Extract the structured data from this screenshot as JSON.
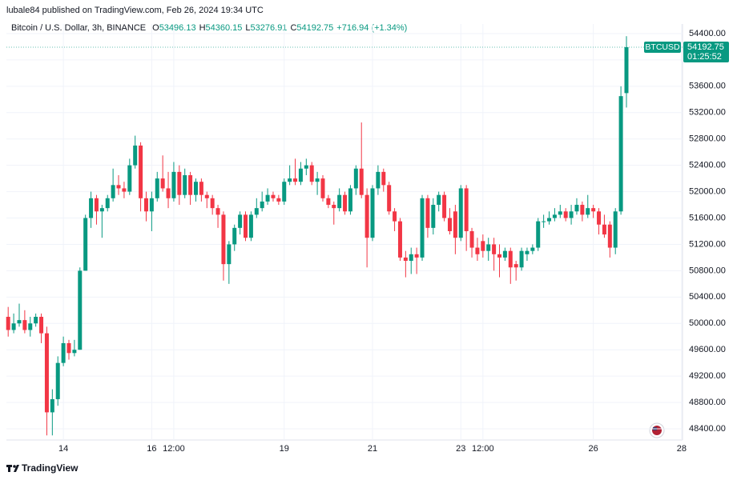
{
  "header": {
    "published": "lubale84 published on TradingView.com, Feb 26, 2024 19:34 UTC",
    "brand": "TradingView"
  },
  "chart_data": {
    "type": "candlestick",
    "symbol_title": "Bitcoin / U.S. Dollar, 3h, BINANCE",
    "ohlc_labels": [
      "O",
      "H",
      "L",
      "C"
    ],
    "change": "+716.94 (+1.34%)",
    "ticker": "BTCUSD",
    "countdown": "01:25:52",
    "up_color": "#089981",
    "down_color": "#f23645",
    "grid": true,
    "x": [
      12.75,
      12.875,
      13,
      13.125,
      13.25,
      13.375,
      13.5,
      13.625,
      13.75,
      13.875,
      14,
      14.125,
      14.25,
      14.375,
      14.5,
      14.625,
      14.75,
      14.875,
      15,
      15.125,
      15.25,
      15.375,
      15.5,
      15.625,
      15.75,
      15.875,
      16,
      16.125,
      16.25,
      16.375,
      16.5,
      16.625,
      16.75,
      16.875,
      17,
      17.125,
      17.25,
      17.375,
      17.5,
      17.625,
      17.75,
      17.875,
      18,
      18.125,
      18.25,
      18.375,
      18.5,
      18.625,
      18.75,
      18.875,
      19,
      19.125,
      19.25,
      19.375,
      19.5,
      19.625,
      19.75,
      19.875,
      20,
      20.125,
      20.25,
      20.375,
      20.5,
      20.625,
      20.75,
      20.875,
      21,
      21.125,
      21.25,
      21.375,
      21.5,
      21.625,
      21.75,
      21.875,
      22,
      22.125,
      22.25,
      22.375,
      22.5,
      22.625,
      22.75,
      22.875,
      23,
      23.125,
      23.25,
      23.375,
      23.5,
      23.625,
      23.75,
      23.875,
      24,
      24.125,
      24.25,
      24.375,
      24.5,
      24.625,
      24.75,
      24.875,
      25,
      25.125,
      25.25,
      25.375,
      25.5,
      25.625,
      25.75,
      25.875,
      26,
      26.125,
      26.25,
      26.375,
      26.5,
      26.625,
      26.75
    ],
    "ohlc": [
      [
        50100,
        50250,
        49800,
        49900
      ],
      [
        49900,
        50150,
        49850,
        50000
      ],
      [
        50000,
        50300,
        49950,
        50050
      ],
      [
        50050,
        50200,
        49850,
        49900
      ],
      [
        49900,
        50100,
        49800,
        50000
      ],
      [
        50000,
        50150,
        49950,
        50100
      ],
      [
        50100,
        50150,
        49700,
        49850
      ],
      [
        49850,
        49950,
        48300,
        48650
      ],
      [
        48650,
        49000,
        48300,
        48850
      ],
      [
        48850,
        49500,
        48750,
        49400
      ],
      [
        49400,
        49800,
        49350,
        49700
      ],
      [
        49700,
        49750,
        49450,
        49550
      ],
      [
        49550,
        49750,
        49500,
        49600
      ],
      [
        49600,
        50850,
        49600,
        50800
      ],
      [
        50800,
        51650,
        50800,
        51600
      ],
      [
        51600,
        52000,
        51450,
        51900
      ],
      [
        51900,
        51950,
        51500,
        51700
      ],
      [
        51700,
        51800,
        51300,
        51750
      ],
      [
        51750,
        51950,
        51700,
        51900
      ],
      [
        51900,
        52350,
        51850,
        52100
      ],
      [
        52100,
        52250,
        51950,
        52050
      ],
      [
        52050,
        52150,
        51900,
        52000
      ],
      [
        52000,
        52500,
        51950,
        52400
      ],
      [
        52400,
        52850,
        52350,
        52700
      ],
      [
        52700,
        52750,
        51700,
        51900
      ],
      [
        51900,
        52000,
        51550,
        51700
      ],
      [
        51700,
        52000,
        51400,
        51900
      ],
      [
        51900,
        52300,
        51850,
        52200
      ],
      [
        52200,
        52550,
        52000,
        52050
      ],
      [
        52050,
        52300,
        51750,
        51900
      ],
      [
        51900,
        52450,
        51850,
        52300
      ],
      [
        52300,
        52400,
        51800,
        51950
      ],
      [
        51950,
        52350,
        51900,
        52250
      ],
      [
        52250,
        52300,
        51800,
        51950
      ],
      [
        51950,
        52200,
        51850,
        52150
      ],
      [
        52150,
        52200,
        51850,
        51950
      ],
      [
        51950,
        52000,
        51750,
        51900
      ],
      [
        51900,
        51950,
        51650,
        51750
      ],
      [
        51750,
        51800,
        51450,
        51650
      ],
      [
        51650,
        51700,
        50650,
        50900
      ],
      [
        50900,
        51250,
        50600,
        51200
      ],
      [
        51200,
        51500,
        51100,
        51450
      ],
      [
        51450,
        51700,
        51350,
        51650
      ],
      [
        51650,
        51700,
        51250,
        51300
      ],
      [
        51300,
        51700,
        51250,
        51650
      ],
      [
        51650,
        51900,
        51600,
        51750
      ],
      [
        51750,
        52000,
        51700,
        51850
      ],
      [
        51850,
        52050,
        51800,
        51950
      ],
      [
        51950,
        52000,
        51850,
        51900
      ],
      [
        51900,
        51950,
        51800,
        51850
      ],
      [
        51850,
        52200,
        51800,
        52150
      ],
      [
        52150,
        52400,
        52100,
        52200
      ],
      [
        52200,
        52500,
        52100,
        52150
      ],
      [
        52150,
        52450,
        52100,
        52350
      ],
      [
        52350,
        52500,
        52250,
        52400
      ],
      [
        52400,
        52450,
        52100,
        52150
      ],
      [
        52150,
        52300,
        51950,
        52200
      ],
      [
        52200,
        52250,
        51850,
        51900
      ],
      [
        51900,
        51950,
        51750,
        51800
      ],
      [
        51800,
        51850,
        51500,
        51750
      ],
      [
        51750,
        52050,
        51700,
        51950
      ],
      [
        51950,
        52000,
        51650,
        51700
      ],
      [
        51700,
        52100,
        51650,
        52050
      ],
      [
        52050,
        52400,
        51950,
        52350
      ],
      [
        52350,
        53050,
        51900,
        51950
      ],
      [
        51950,
        52050,
        50850,
        51300
      ],
      [
        51300,
        52100,
        51250,
        52050
      ],
      [
        52050,
        52400,
        51950,
        52300
      ],
      [
        52300,
        52350,
        52000,
        52100
      ],
      [
        52100,
        52150,
        51650,
        51700
      ],
      [
        51700,
        51750,
        51400,
        51550
      ],
      [
        51550,
        51600,
        50950,
        51000
      ],
      [
        51000,
        51100,
        50700,
        50950
      ],
      [
        50950,
        51150,
        50750,
        51050
      ],
      [
        51050,
        51150,
        50750,
        51000
      ],
      [
        51000,
        51950,
        50950,
        51900
      ],
      [
        51900,
        51950,
        51300,
        51450
      ],
      [
        51450,
        51900,
        51350,
        51800
      ],
      [
        51800,
        52000,
        51700,
        51950
      ],
      [
        51950,
        52000,
        51550,
        51600
      ],
      [
        51600,
        51750,
        51350,
        51400
      ],
      [
        51700,
        51800,
        51050,
        51300
      ],
      [
        51300,
        52100,
        51250,
        52050
      ],
      [
        52050,
        52100,
        51100,
        51400
      ],
      [
        51400,
        51450,
        51000,
        51150
      ],
      [
        51150,
        51300,
        50950,
        51050
      ],
      [
        51250,
        51350,
        51000,
        51100
      ],
      [
        51100,
        51300,
        50950,
        51200
      ],
      [
        51200,
        51300,
        50800,
        51050
      ],
      [
        51050,
        51200,
        50700,
        51000
      ],
      [
        51000,
        51150,
        50950,
        51100
      ],
      [
        51100,
        51150,
        50600,
        50850
      ],
      [
        50900,
        50950,
        50650,
        50850
      ],
      [
        50850,
        51150,
        50800,
        51100
      ],
      [
        51050,
        51150,
        50950,
        51100
      ],
      [
        51100,
        51200,
        51050,
        51150
      ],
      [
        51150,
        51600,
        51100,
        51550
      ],
      [
        51550,
        51650,
        51450,
        51550
      ],
      [
        51550,
        51700,
        51500,
        51600
      ],
      [
        51600,
        51750,
        51550,
        51650
      ],
      [
        51650,
        51800,
        51600,
        51700
      ],
      [
        51700,
        51750,
        51550,
        51600
      ],
      [
        51600,
        51800,
        51500,
        51700
      ],
      [
        51700,
        51900,
        51650,
        51800
      ],
      [
        51800,
        51850,
        51550,
        51650
      ],
      [
        51650,
        51950,
        51600,
        51750
      ],
      [
        51750,
        51800,
        51600,
        51700
      ],
      [
        51700,
        51750,
        51350,
        51500
      ],
      [
        51500,
        51650,
        51300,
        51350
      ],
      [
        51500,
        51550,
        51000,
        51150
      ],
      [
        51150,
        51750,
        51050,
        51700
      ],
      [
        51700,
        53600,
        51650,
        53450
      ],
      [
        53496.13,
        54360.15,
        53276.91,
        54192.75
      ]
    ],
    "xlim": [
      12.71,
      28.02
    ],
    "xticks": [
      14,
      16,
      {
        "value": 16.5,
        "label": "12:00"
      },
      19,
      21,
      23,
      {
        "value": 23.5,
        "label": "12:00"
      },
      26,
      28
    ],
    "ylim": [
      48230,
      54545
    ],
    "yticks": [
      {
        "value": 48400,
        "label": "48400.00"
      },
      {
        "value": 48800,
        "label": "48800.00"
      },
      {
        "value": 49200,
        "label": "49200.00"
      },
      {
        "value": 49600,
        "label": "49600.00"
      },
      {
        "value": 50000,
        "label": "50000.00"
      },
      {
        "value": 50400,
        "label": "50400.00"
      },
      {
        "value": 50800,
        "label": "50800.00"
      },
      {
        "value": 51200,
        "label": "51200.00"
      },
      {
        "value": 51600,
        "label": "51600.00"
      },
      {
        "value": 52000,
        "label": "52000.00"
      },
      {
        "value": 52400,
        "label": "52400.00"
      },
      {
        "value": 52800,
        "label": "52800.00"
      },
      {
        "value": 53200,
        "label": "53200.00"
      },
      {
        "value": 53600,
        "label": "53600.00"
      },
      {
        "value": 54000,
        "label": "54000.00"
      },
      {
        "value": 54400,
        "label": "54400.00"
      }
    ]
  }
}
